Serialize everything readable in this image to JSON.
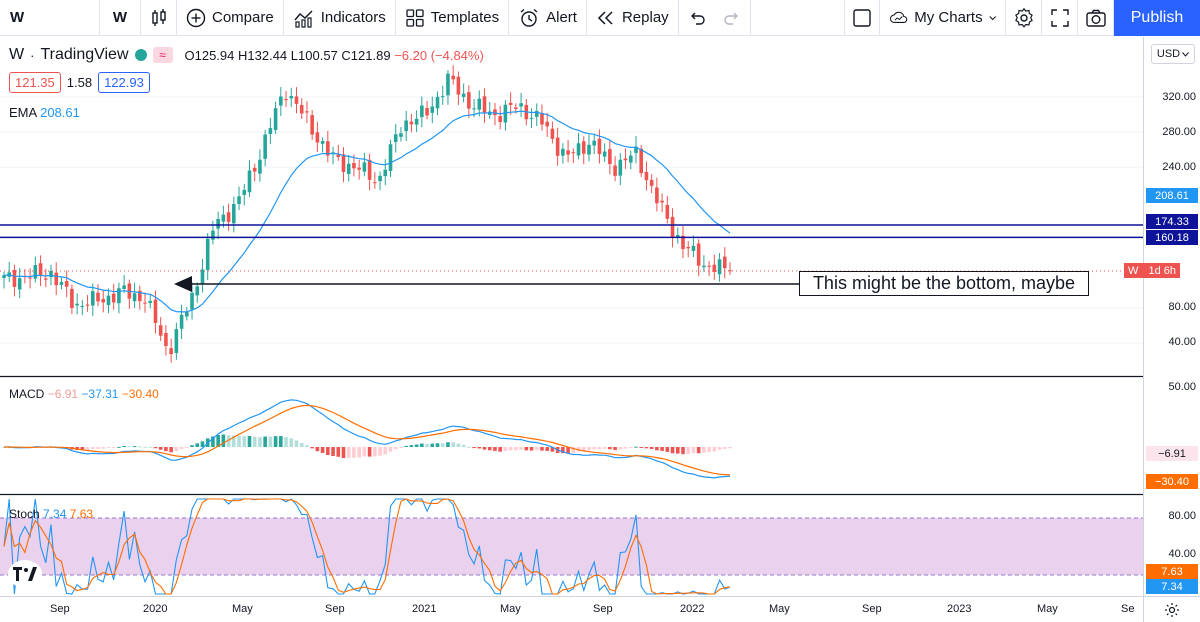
{
  "toolbar": {
    "symbol": "W",
    "interval": "W",
    "compare": "Compare",
    "indicators": "Indicators",
    "templates": "Templates",
    "alert": "Alert",
    "replay": "Replay",
    "my_charts": "My Charts",
    "publish": "Publish"
  },
  "legend": {
    "symbol": "W",
    "source": "TradingView",
    "open": "O125.94",
    "high": "H132.44",
    "low": "L100.57",
    "close": "C121.89",
    "change": "−6.20 (−4.84%)",
    "bid": "121.35",
    "spread": "1.58",
    "ask": "122.93",
    "ema_name": "EMA",
    "ema_value": "208.61",
    "macd_name": "MACD",
    "macd_v1": "−6.91",
    "macd_v2": "−37.31",
    "macd_v3": "−30.40",
    "stoch_name": "Stoch",
    "stoch_k": "7.34",
    "stoch_d": "7.63"
  },
  "annotation": "This might be the bottom, maybe",
  "price_scale": {
    "currency": "USD",
    "labels": [
      "320.00",
      "280.00",
      "240.00",
      "80.00",
      "40.00"
    ],
    "badge_ema": "208.61",
    "badge_line1": "174.33",
    "badge_line2": "160.18",
    "badge_price_symbol": "W",
    "badge_price_time": "1d 6h",
    "macd_labels": [
      "50.00"
    ],
    "macd_badge1": "−6.91",
    "macd_badge2": "−30.40",
    "stoch_labels": [
      "80.00",
      "40.00"
    ],
    "stoch_badge_d": "7.63",
    "stoch_badge_k": "7.34"
  },
  "time_axis": [
    "Sep",
    "2020",
    "May",
    "Sep",
    "2021",
    "May",
    "Sep",
    "2022",
    "May",
    "Sep",
    "2023",
    "May",
    "Se"
  ],
  "colors": {
    "up": "#26a69a",
    "down": "#ef5350",
    "ema": "#2196f3",
    "hline": "#0d1499",
    "stoch_band": "#e1bee7",
    "accent": "#2962ff"
  },
  "chart_data": [
    {
      "type": "candlestick",
      "title": "W · TradingView",
      "interval": "W",
      "ylabel": "USD",
      "ylim": [
        20,
        360
      ],
      "x_start": "2019-08-05",
      "x_end": "2022-03-07",
      "close_approx": [
        [
          "2019-08",
          112
        ],
        [
          "2019-09",
          116
        ],
        [
          "2019-10",
          120
        ],
        [
          "2019-11",
          84
        ],
        [
          "2019-12",
          88
        ],
        [
          "2020-01",
          98
        ],
        [
          "2020-02",
          92
        ],
        [
          "2020-03",
          30
        ],
        [
          "2020-04",
          90
        ],
        [
          "2020-05",
          175
        ],
        [
          "2020-06",
          200
        ],
        [
          "2020-07",
          260
        ],
        [
          "2020-08",
          330
        ],
        [
          "2020-09",
          290
        ],
        [
          "2020-10",
          250
        ],
        [
          "2020-11",
          240
        ],
        [
          "2020-12",
          225
        ],
        [
          "2021-01",
          290
        ],
        [
          "2021-02",
          300
        ],
        [
          "2021-03",
          340
        ],
        [
          "2021-04",
          310
        ],
        [
          "2021-05",
          300
        ],
        [
          "2021-06",
          310
        ],
        [
          "2021-07",
          290
        ],
        [
          "2021-08",
          250
        ],
        [
          "2021-09",
          270
        ],
        [
          "2021-10",
          240
        ],
        [
          "2021-11",
          255
        ],
        [
          "2021-12",
          195
        ],
        [
          "2022-01",
          150
        ],
        [
          "2022-02",
          128
        ],
        [
          "2022-03",
          121.89
        ]
      ],
      "ohlc_last": {
        "open": 125.94,
        "high": 132.44,
        "low": 100.57,
        "close": 121.89
      },
      "ema_last": 208.61,
      "horizontal_lines": [
        174.33,
        160.18
      ]
    },
    {
      "type": "line",
      "title": "MACD",
      "series": [
        {
          "name": "MACD",
          "last": -37.31
        },
        {
          "name": "Signal",
          "last": -30.4
        },
        {
          "name": "Histogram",
          "last": -6.91
        }
      ],
      "ylim": [
        -50,
        55
      ]
    },
    {
      "type": "line",
      "title": "Stoch",
      "series": [
        {
          "name": "%K",
          "last": 7.34
        },
        {
          "name": "%D",
          "last": 7.63
        }
      ],
      "bands": [
        20,
        80
      ],
      "ylim": [
        0,
        100
      ]
    }
  ]
}
